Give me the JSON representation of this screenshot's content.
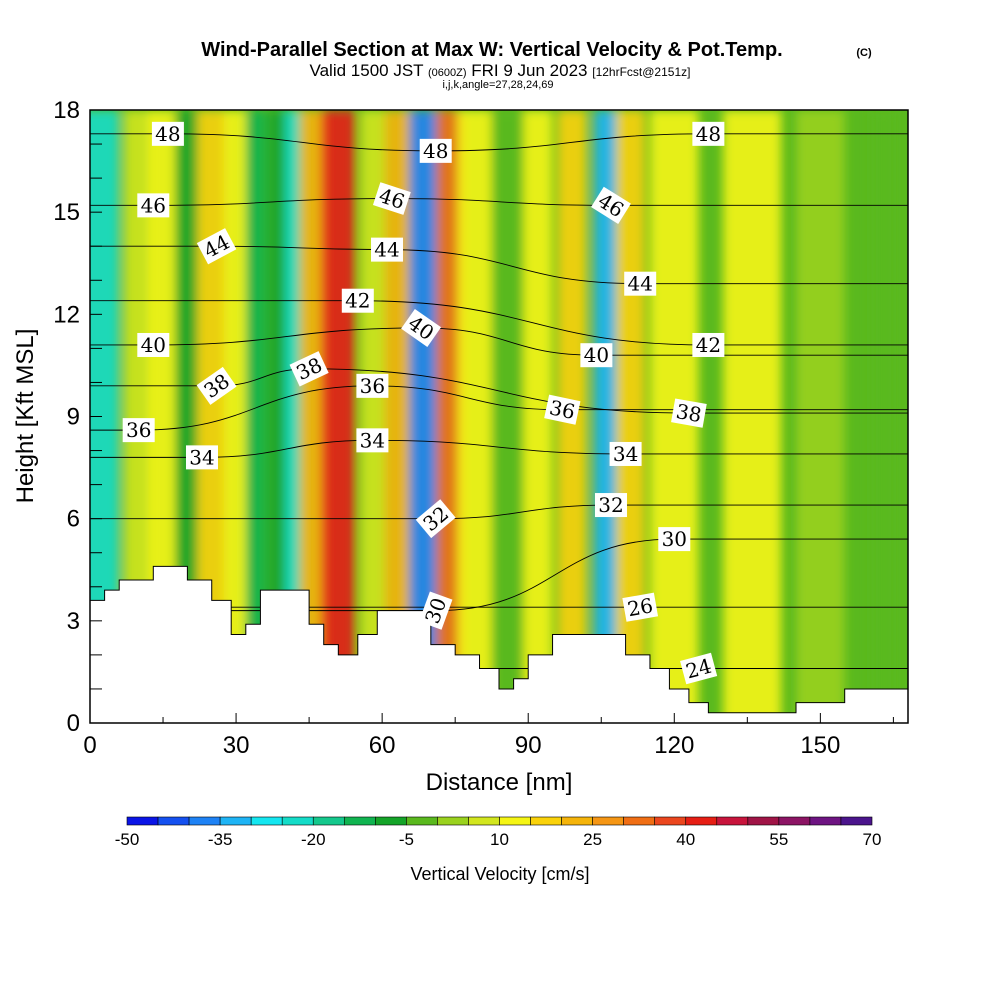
{
  "chart_data": {
    "type": "heatmap",
    "title": "Wind-Parallel Section at Max W: Vertical Velocity & Pot.Temp.",
    "title_mark": "(C)",
    "subtitle_main": "Valid 1500 JST",
    "subtitle_utc": "(0600Z)",
    "subtitle_date": "FRI 9 Jun 2023",
    "subtitle_fcst": "[12hrFcst@2151z]",
    "subtitle2": "i,j,k,angle=27,28,24,69",
    "xlabel": "Distance [nm]",
    "ylabel": "Height [Kft MSL]",
    "xlim": [
      0,
      168
    ],
    "ylim": [
      0,
      18
    ],
    "x_ticks": [
      "0",
      "30",
      "60",
      "90",
      "120",
      "150"
    ],
    "y_ticks": [
      "0",
      "3",
      "6",
      "9",
      "12",
      "15",
      "18"
    ],
    "colorbar": {
      "label": "Vertical Velocity [cm/s]",
      "tick_labels": [
        "-50",
        "-35",
        "-20",
        "-5",
        "10",
        "25",
        "40",
        "55",
        "70"
      ],
      "colors": [
        "#0a14e6",
        "#1450f0",
        "#1e82f5",
        "#1eb4f5",
        "#14e6f0",
        "#14dcc8",
        "#14c88c",
        "#10b450",
        "#14a428",
        "#5ab91e",
        "#9ad21e",
        "#d2e61e",
        "#f5f514",
        "#fad20a",
        "#f5b40a",
        "#f59614",
        "#f06e14",
        "#eb461e",
        "#e61e14",
        "#c8143c",
        "#a01446",
        "#8c1464",
        "#6e1482",
        "#4b148c"
      ]
    },
    "vertical_velocity_columns": [
      {
        "x": 2,
        "w": 8,
        "value": -25
      },
      {
        "x": 10,
        "w": 6,
        "value": 5
      },
      {
        "x": 15,
        "w": 6,
        "value": 12
      },
      {
        "x": 20,
        "w": 5,
        "value": -8
      },
      {
        "x": 25,
        "w": 6,
        "value": 18
      },
      {
        "x": 30,
        "w": 5,
        "value": 12
      },
      {
        "x": 34,
        "w": 4,
        "value": -12
      },
      {
        "x": 39,
        "w": 5,
        "value": -10
      },
      {
        "x": 42,
        "w": 4,
        "value": -25
      },
      {
        "x": 46,
        "w": 6,
        "value": 22
      },
      {
        "x": 51,
        "w": 7,
        "value": 42
      },
      {
        "x": 58,
        "w": 5,
        "value": 5
      },
      {
        "x": 64,
        "w": 7,
        "value": 22
      },
      {
        "x": 69,
        "w": 7,
        "value": -40
      },
      {
        "x": 74,
        "w": 6,
        "value": 30
      },
      {
        "x": 79,
        "w": 7,
        "value": 12
      },
      {
        "x": 86,
        "w": 7,
        "value": -5
      },
      {
        "x": 92,
        "w": 6,
        "value": 10
      },
      {
        "x": 99,
        "w": 6,
        "value": 18
      },
      {
        "x": 106,
        "w": 5,
        "value": -35
      },
      {
        "x": 111,
        "w": 6,
        "value": 18
      },
      {
        "x": 120,
        "w": 10,
        "value": 10
      },
      {
        "x": 136,
        "w": 12,
        "value": 12
      },
      {
        "x": 150,
        "w": 10,
        "value": 3
      },
      {
        "x": 163,
        "w": 5,
        "value": -5
      }
    ],
    "terrain_height_kft": [
      {
        "x": 0,
        "h": 3.6
      },
      {
        "x": 3,
        "h": 3.9
      },
      {
        "x": 6,
        "h": 4.2
      },
      {
        "x": 13,
        "h": 4.6
      },
      {
        "x": 20,
        "h": 4.2
      },
      {
        "x": 25,
        "h": 3.6
      },
      {
        "x": 29,
        "h": 2.6
      },
      {
        "x": 32,
        "h": 2.9
      },
      {
        "x": 35,
        "h": 3.9
      },
      {
        "x": 45,
        "h": 2.9
      },
      {
        "x": 48,
        "h": 2.3
      },
      {
        "x": 51,
        "h": 2.0
      },
      {
        "x": 55,
        "h": 2.6
      },
      {
        "x": 59,
        "h": 3.3
      },
      {
        "x": 70,
        "h": 2.3
      },
      {
        "x": 75,
        "h": 2.0
      },
      {
        "x": 80,
        "h": 1.6
      },
      {
        "x": 84,
        "h": 1.0
      },
      {
        "x": 87,
        "h": 1.3
      },
      {
        "x": 90,
        "h": 2.0
      },
      {
        "x": 95,
        "h": 2.6
      },
      {
        "x": 110,
        "h": 2.0
      },
      {
        "x": 115,
        "h": 1.6
      },
      {
        "x": 119,
        "h": 1.0
      },
      {
        "x": 123,
        "h": 0.6
      },
      {
        "x": 127,
        "h": 0.3
      },
      {
        "x": 145,
        "h": 0.6
      },
      {
        "x": 155,
        "h": 1.0
      },
      {
        "x": 168,
        "h": 1.0
      }
    ],
    "theta_contour_labels": [
      {
        "text": "48",
        "x": 16,
        "y": 17.3,
        "angle": 0
      },
      {
        "text": "48",
        "x": 71,
        "y": 16.8,
        "angle": 0
      },
      {
        "text": "48",
        "x": 127,
        "y": 17.3,
        "angle": 0
      },
      {
        "text": "46",
        "x": 13,
        "y": 15.2,
        "angle": 0
      },
      {
        "text": "46",
        "x": 62,
        "y": 15.4,
        "angle": 18
      },
      {
        "text": "46",
        "x": 107,
        "y": 15.2,
        "angle": 32
      },
      {
        "text": "44",
        "x": 26,
        "y": 14.0,
        "angle": -28
      },
      {
        "text": "44",
        "x": 61,
        "y": 13.9,
        "angle": 0
      },
      {
        "text": "44",
        "x": 113,
        "y": 12.9,
        "angle": 0
      },
      {
        "text": "42",
        "x": 55,
        "y": 12.4,
        "angle": 0
      },
      {
        "text": "42",
        "x": 127,
        "y": 11.1,
        "angle": 0
      },
      {
        "text": "40",
        "x": 13,
        "y": 11.1,
        "angle": 0
      },
      {
        "text": "40",
        "x": 68,
        "y": 11.6,
        "angle": 35
      },
      {
        "text": "40",
        "x": 104,
        "y": 10.8,
        "angle": 0
      },
      {
        "text": "38",
        "x": 26,
        "y": 9.9,
        "angle": -35
      },
      {
        "text": "38",
        "x": 45,
        "y": 10.4,
        "angle": -25
      },
      {
        "text": "38",
        "x": 123,
        "y": 9.1,
        "angle": 10
      },
      {
        "text": "36",
        "x": 10,
        "y": 8.6,
        "angle": 0
      },
      {
        "text": "36",
        "x": 58,
        "y": 9.9,
        "angle": 0
      },
      {
        "text": "36",
        "x": 97,
        "y": 9.2,
        "angle": 12
      },
      {
        "text": "34",
        "x": 23,
        "y": 7.8,
        "angle": 0
      },
      {
        "text": "34",
        "x": 58,
        "y": 8.3,
        "angle": 0
      },
      {
        "text": "34",
        "x": 110,
        "y": 7.9,
        "angle": 0
      },
      {
        "text": "32",
        "x": 71,
        "y": 6.0,
        "angle": -40
      },
      {
        "text": "32",
        "x": 107,
        "y": 6.4,
        "angle": 0
      },
      {
        "text": "30",
        "x": 71,
        "y": 3.3,
        "angle": -70
      },
      {
        "text": "30",
        "x": 120,
        "y": 5.4,
        "angle": 0
      },
      {
        "text": "26",
        "x": 113,
        "y": 3.4,
        "angle": -10
      },
      {
        "text": "24",
        "x": 125,
        "y": 1.6,
        "angle": -15
      }
    ]
  }
}
